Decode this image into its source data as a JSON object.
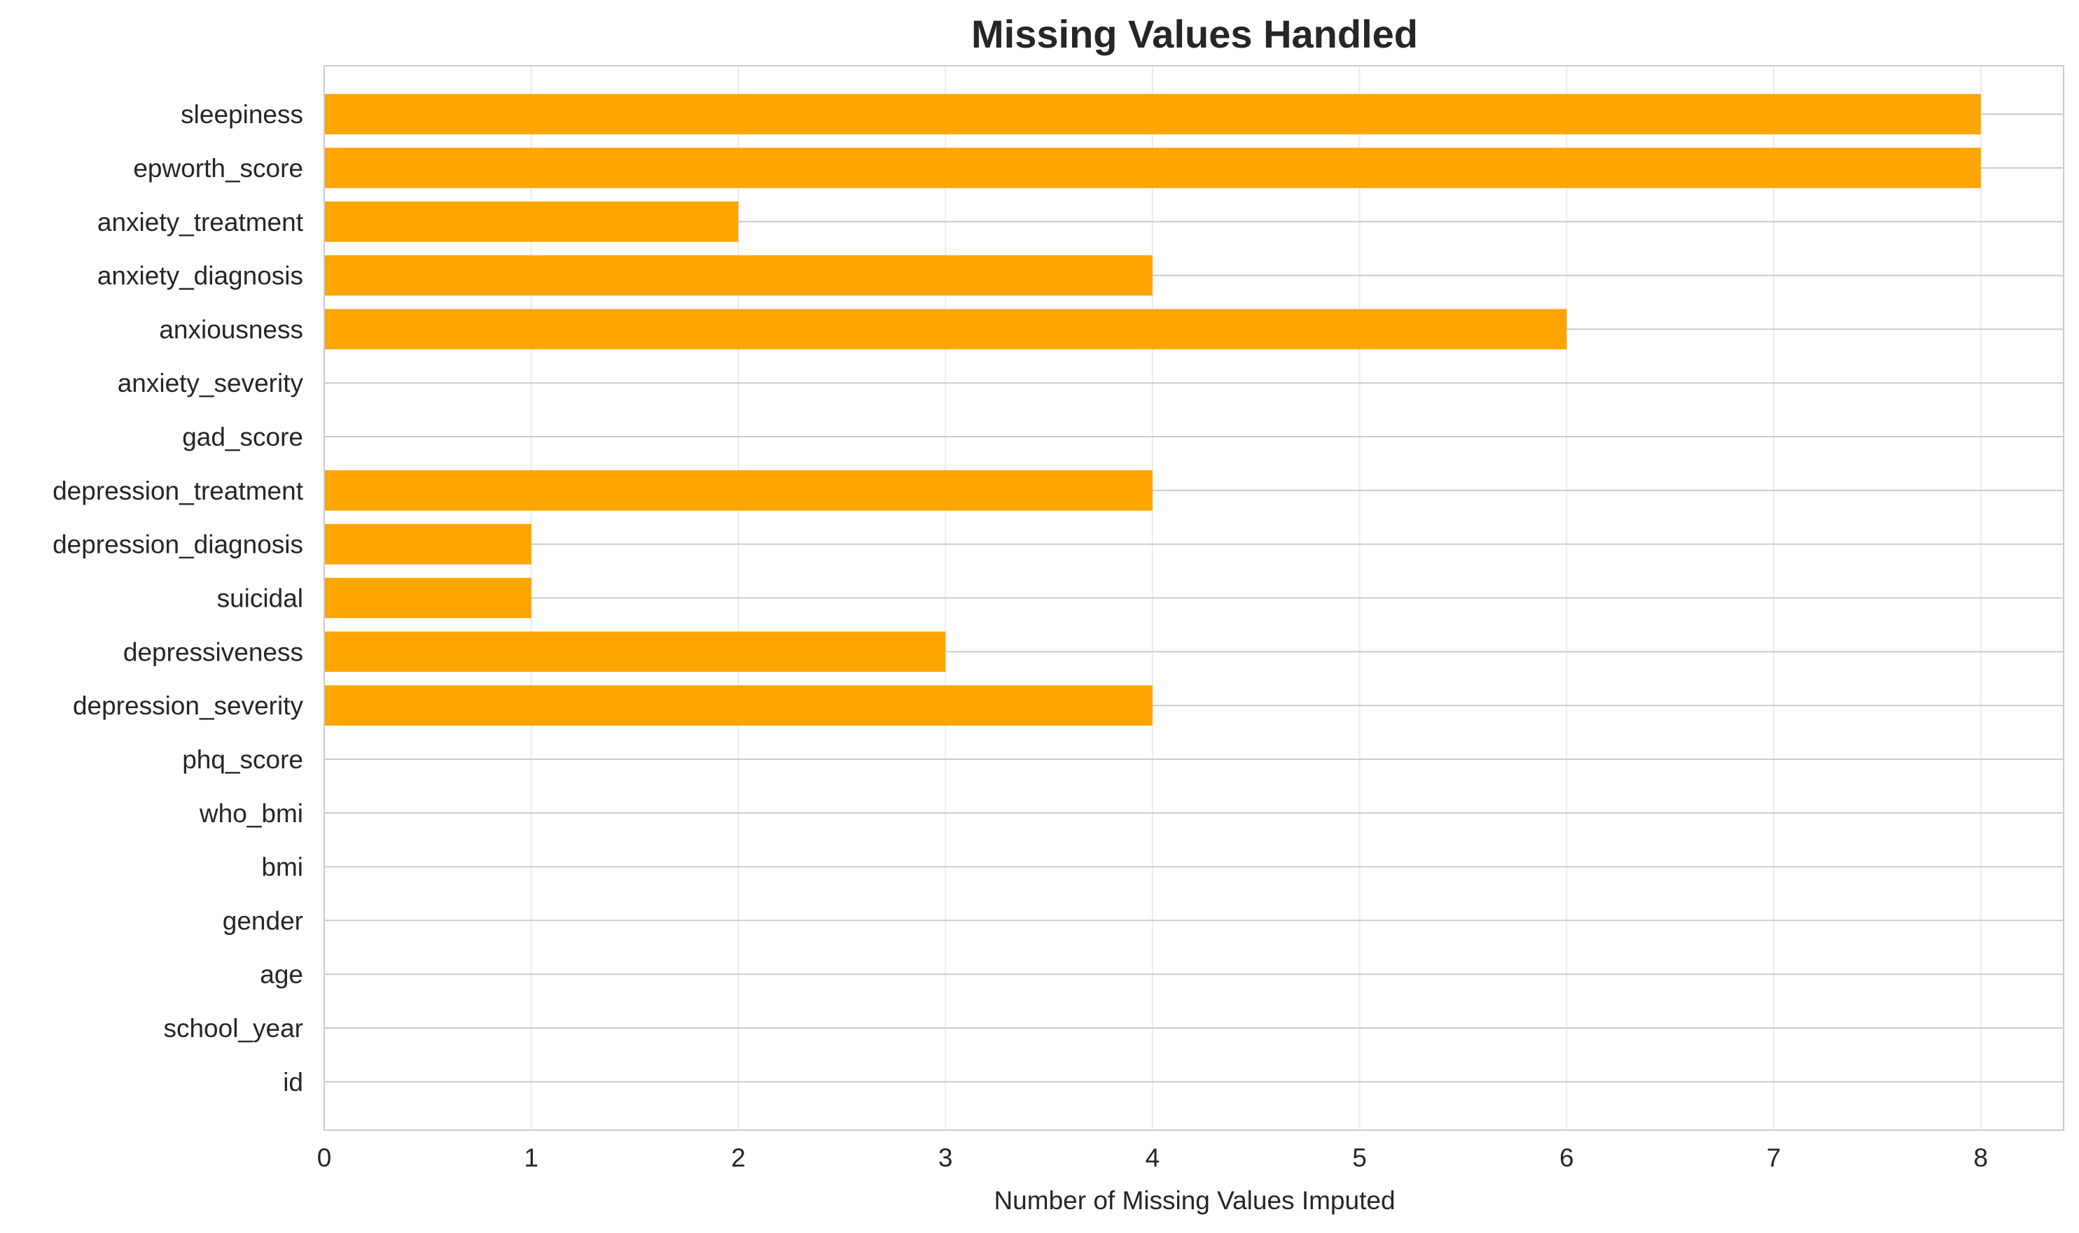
{
  "chart_data": {
    "type": "bar",
    "orientation": "horizontal",
    "title": "Missing Values Handled",
    "xlabel": "Number of Missing Values Imputed",
    "ylabel": "",
    "categories": [
      "id",
      "school_year",
      "age",
      "gender",
      "bmi",
      "who_bmi",
      "phq_score",
      "depression_severity",
      "depressiveness",
      "suicidal",
      "depression_diagnosis",
      "depression_treatment",
      "gad_score",
      "anxiety_severity",
      "anxiousness",
      "anxiety_diagnosis",
      "anxiety_treatment",
      "epworth_score",
      "sleepiness"
    ],
    "values": [
      0,
      0,
      0,
      0,
      0,
      0,
      0,
      4,
      3,
      1,
      1,
      4,
      0,
      0,
      6,
      4,
      2,
      8,
      8
    ],
    "xlim": [
      0,
      8.4
    ],
    "xticks": [
      "0",
      "1",
      "2",
      "3",
      "4",
      "5",
      "6",
      "7",
      "8"
    ],
    "grid": true,
    "bar_color": "#ffa500",
    "grid_color": "#cccccc",
    "spine_color": "#cccccc",
    "text_color": "#262626"
  }
}
